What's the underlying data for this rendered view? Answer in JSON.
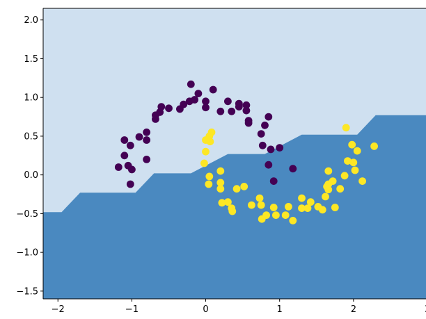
{
  "chart_data": {
    "type": "scatter",
    "title": "",
    "xlabel": "",
    "ylabel": "",
    "xlim": [
      -2.2,
      3.0
    ],
    "ylim": [
      -1.6,
      2.15
    ],
    "grid": false,
    "x_ticks": [
      -2,
      -1,
      0,
      1,
      2,
      3
    ],
    "x_tick_labels": [
      "−2",
      "−1",
      "0",
      "1",
      "2",
      "3"
    ],
    "y_ticks": [
      -1.5,
      -1.0,
      -0.5,
      0.0,
      0.5,
      1.0,
      1.5,
      2.0
    ],
    "y_tick_labels": [
      "−1.5",
      "−1.0",
      "−0.5",
      "0.0",
      "0.5",
      "1.0",
      "1.5",
      "2.0"
    ],
    "colors": {
      "region_upper": "#cfe0f0",
      "region_lower": "#4a89c0",
      "class_0": "#440154",
      "class_1": "#fde725"
    },
    "decision_boundary": {
      "x": [
        -2.2,
        -1.95,
        -1.7,
        -0.95,
        -0.7,
        -0.2,
        0.3,
        0.8,
        1.3,
        2.05,
        2.3,
        3.0
      ],
      "y": [
        -0.48,
        -0.48,
        -0.23,
        -0.23,
        0.02,
        0.02,
        0.27,
        0.27,
        0.52,
        0.52,
        0.77,
        0.77
      ]
    },
    "series": [
      {
        "class": 0,
        "points": [
          [
            -1.18,
            0.1
          ],
          [
            -1.05,
            0.12
          ],
          [
            -1.0,
            0.07
          ],
          [
            -1.1,
            0.25
          ],
          [
            -1.02,
            -0.12
          ],
          [
            -1.1,
            0.45
          ],
          [
            -1.02,
            0.38
          ],
          [
            -0.9,
            0.49
          ],
          [
            -0.8,
            0.45
          ],
          [
            -0.8,
            0.55
          ],
          [
            -0.8,
            0.2
          ],
          [
            -0.68,
            0.72
          ],
          [
            -0.68,
            0.77
          ],
          [
            -0.62,
            0.81
          ],
          [
            -0.6,
            0.88
          ],
          [
            -0.5,
            0.86
          ],
          [
            -0.35,
            0.85
          ],
          [
            -0.3,
            0.91
          ],
          [
            -0.22,
            0.95
          ],
          [
            -0.2,
            1.17
          ],
          [
            -0.1,
            1.05
          ],
          [
            -0.15,
            0.97
          ],
          [
            0.0,
            0.95
          ],
          [
            0.0,
            0.87
          ],
          [
            0.1,
            1.1
          ],
          [
            0.2,
            0.82
          ],
          [
            0.3,
            0.95
          ],
          [
            0.35,
            0.82
          ],
          [
            0.45,
            0.88
          ],
          [
            0.45,
            0.92
          ],
          [
            0.55,
            0.9
          ],
          [
            0.55,
            0.83
          ],
          [
            0.58,
            0.7
          ],
          [
            0.58,
            0.67
          ],
          [
            0.85,
            0.75
          ],
          [
            0.8,
            0.64
          ],
          [
            0.75,
            0.53
          ],
          [
            0.77,
            0.38
          ],
          [
            0.88,
            0.33
          ],
          [
            1.0,
            0.35
          ],
          [
            0.85,
            0.13
          ],
          [
            0.92,
            -0.08
          ],
          [
            1.18,
            0.08
          ]
        ]
      },
      {
        "class": 1,
        "points": [
          [
            0.08,
            0.55
          ],
          [
            0.05,
            0.5
          ],
          [
            0.0,
            0.45
          ],
          [
            0.06,
            0.43
          ],
          [
            0.0,
            0.3
          ],
          [
            -0.02,
            0.15
          ],
          [
            0.05,
            -0.02
          ],
          [
            0.04,
            -0.12
          ],
          [
            0.2,
            0.05
          ],
          [
            0.2,
            -0.1
          ],
          [
            0.2,
            -0.18
          ],
          [
            0.22,
            -0.36
          ],
          [
            0.3,
            -0.35
          ],
          [
            0.35,
            -0.43
          ],
          [
            0.36,
            -0.47
          ],
          [
            0.42,
            -0.18
          ],
          [
            0.52,
            -0.15
          ],
          [
            0.62,
            -0.39
          ],
          [
            0.73,
            -0.3
          ],
          [
            0.75,
            -0.39
          ],
          [
            0.76,
            -0.57
          ],
          [
            0.82,
            -0.52
          ],
          [
            0.92,
            -0.42
          ],
          [
            0.95,
            -0.52
          ],
          [
            1.08,
            -0.52
          ],
          [
            1.12,
            -0.41
          ],
          [
            1.18,
            -0.59
          ],
          [
            1.3,
            -0.43
          ],
          [
            1.3,
            -0.3
          ],
          [
            1.38,
            -0.43
          ],
          [
            1.42,
            -0.35
          ],
          [
            1.52,
            -0.41
          ],
          [
            1.58,
            -0.45
          ],
          [
            1.62,
            -0.28
          ],
          [
            1.64,
            -0.15
          ],
          [
            1.66,
            -0.19
          ],
          [
            1.66,
            0.05
          ],
          [
            1.66,
            -0.12
          ],
          [
            1.72,
            -0.08
          ],
          [
            1.75,
            -0.42
          ],
          [
            1.82,
            -0.18
          ],
          [
            1.88,
            -0.01
          ],
          [
            1.9,
            0.61
          ],
          [
            1.92,
            0.18
          ],
          [
            1.98,
            0.39
          ],
          [
            2.0,
            0.16
          ],
          [
            2.02,
            0.06
          ],
          [
            2.05,
            0.31
          ],
          [
            2.12,
            -0.08
          ],
          [
            2.28,
            0.37
          ]
        ]
      }
    ]
  }
}
